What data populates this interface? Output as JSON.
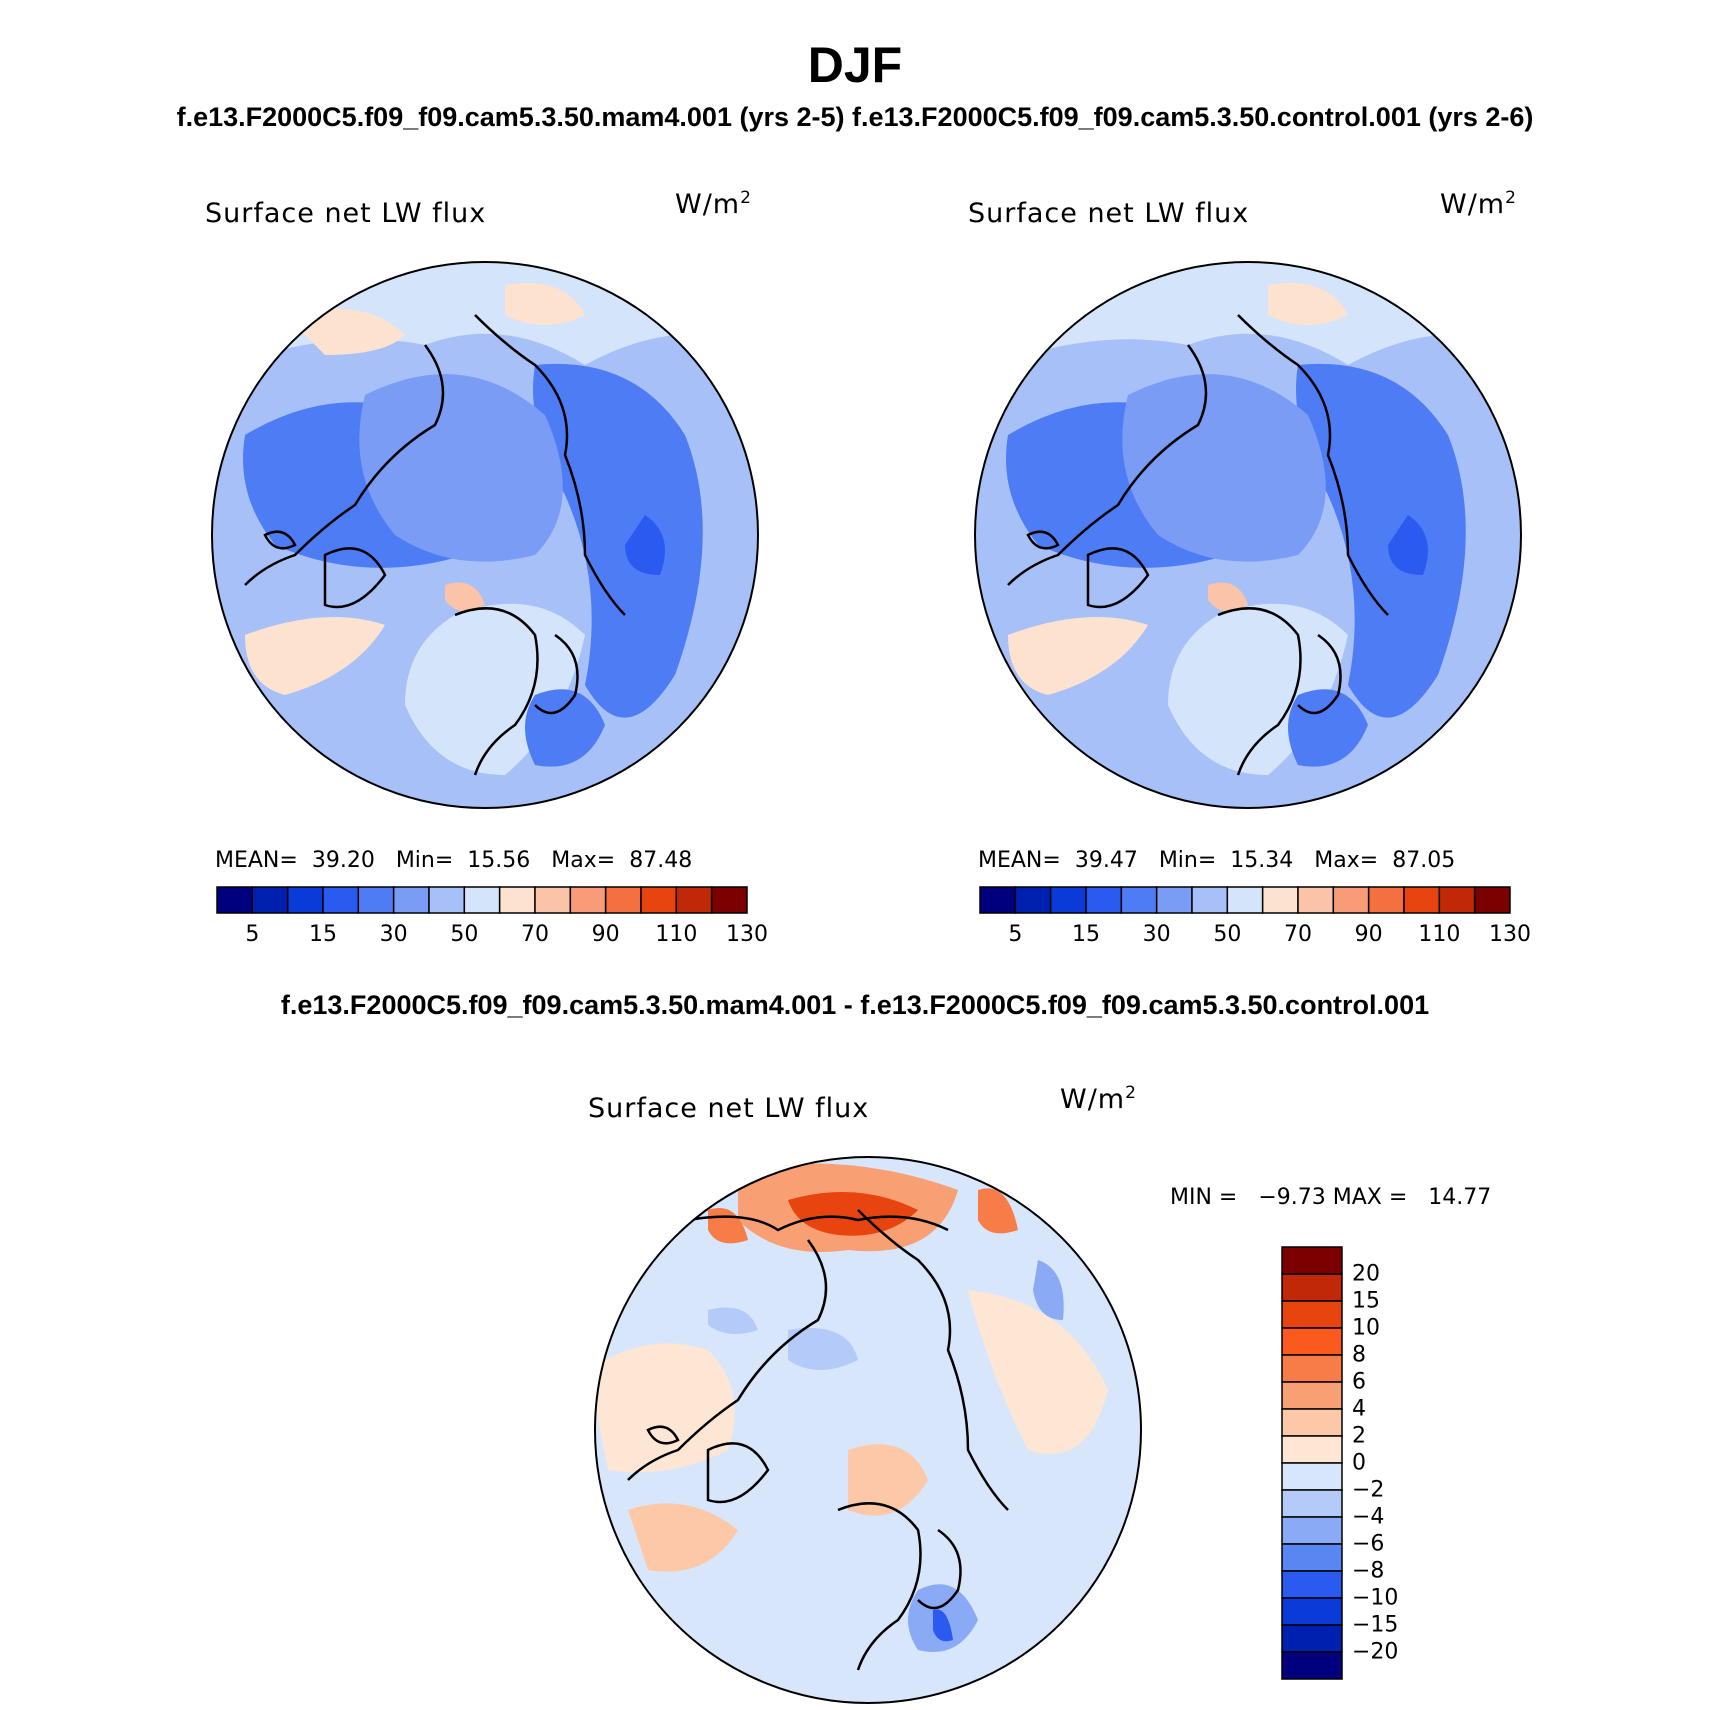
{
  "title": "DJF",
  "subtitle": "f.e13.F2000C5.f09_f09.cam5.3.50.mam4.001 (yrs 2-5) f.e13.F2000C5.f09_f09.cam5.3.50.control.001 (yrs 2-6)",
  "diff_title": "f.e13.F2000C5.f09_f09.cam5.3.50.mam4.001 - f.e13.F2000C5.f09_f09.cam5.3.50.control.001",
  "panels": [
    {
      "label": "Surface net LW flux",
      "units": "W/m",
      "units_sup": "2",
      "stats": {
        "mean_label": "MEAN=",
        "mean": "39.20",
        "min_label": "Min=",
        "min": "15.56",
        "max_label": "Max=",
        "max": "87.48"
      }
    },
    {
      "label": "Surface net LW flux",
      "units": "W/m",
      "units_sup": "2",
      "stats": {
        "mean_label": "MEAN=",
        "mean": "39.47",
        "min_label": "Min=",
        "min": "15.34",
        "max_label": "Max=",
        "max": "87.05"
      }
    }
  ],
  "diff_panel": {
    "label": "Surface net LW flux",
    "units": "W/m",
    "units_sup": "2",
    "minmax": "MIN =   −9.73 MAX =   14.77"
  },
  "colorbar_top": {
    "colors": [
      "#00007f",
      "#0020b0",
      "#0a3ad8",
      "#2a5af0",
      "#4e7cf5",
      "#7a9cf5",
      "#a8c0f8",
      "#d4e4fb",
      "#fde2d0",
      "#fbc4a8",
      "#f89c78",
      "#f57040",
      "#e8440f",
      "#c02808",
      "#7d0000"
    ],
    "tick_labels": [
      "5",
      "15",
      "30",
      "50",
      "70",
      "90",
      "110",
      "130"
    ]
  },
  "colorbar_diff": {
    "colors": [
      "#7d0000",
      "#c02808",
      "#e8440f",
      "#fa5a1e",
      "#f87c48",
      "#f8a074",
      "#fcc8a8",
      "#fde6d4",
      "#d8e6fb",
      "#b4caf8",
      "#8aaaf5",
      "#5a86f2",
      "#2a5af0",
      "#0a3ad8",
      "#0020b0",
      "#00007f"
    ],
    "tick_labels": [
      "20",
      "15",
      "10",
      "8",
      "6",
      "4",
      "2",
      "0",
      "−2",
      "−4",
      "−6",
      "−8",
      "−10",
      "−15",
      "−20"
    ]
  }
}
